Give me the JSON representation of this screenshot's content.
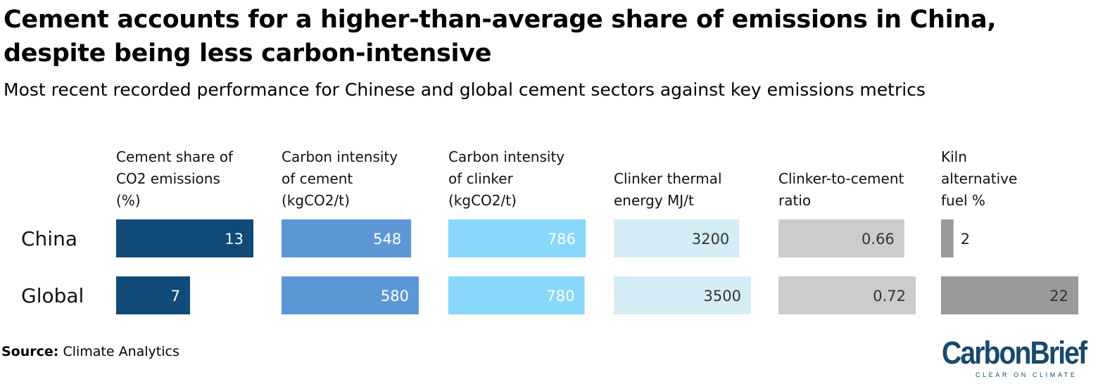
{
  "chart_data": {
    "type": "bar",
    "title": "Cement accounts for a higher-than-average share of emissions in China, despite being less carbon-intensive",
    "subtitle": "Most recent recorded performance for Chinese and global cement sectors against key emissions metrics",
    "categories": [
      "China",
      "Global"
    ],
    "metrics": [
      {
        "label": "Cement share of CO2 emissions (%)",
        "values": [
          13,
          7
        ],
        "labels": [
          "13",
          "7"
        ],
        "color": "#0f4a78"
      },
      {
        "label": "Carbon intensity of cement (kgCO2/t)",
        "values": [
          548,
          580
        ],
        "labels": [
          "548",
          "580"
        ],
        "color": "#5c97d5"
      },
      {
        "label": "Carbon intensity of clinker (kgCO2/t)",
        "values": [
          786,
          780
        ],
        "labels": [
          "786",
          "780"
        ],
        "color": "#89d8fb"
      },
      {
        "label": "Clinker thermal energy MJ/t",
        "values": [
          3200,
          3500
        ],
        "labels": [
          "3200",
          "3500"
        ],
        "color": "#d4ecf5"
      },
      {
        "label": "Clinker-to-cement ratio",
        "values": [
          0.66,
          0.72
        ],
        "labels": [
          "0.66",
          "0.72"
        ],
        "color": "#cccccc"
      },
      {
        "label": "Kiln alternative fuel %",
        "values": [
          2,
          22
        ],
        "labels": [
          "2",
          "22"
        ],
        "color": "#999999"
      }
    ]
  },
  "source": {
    "label": "Source:",
    "text": "Climate Analytics"
  },
  "logo": {
    "name": "CarbonBrief",
    "tagline": "CLEAR ON CLIMATE"
  }
}
